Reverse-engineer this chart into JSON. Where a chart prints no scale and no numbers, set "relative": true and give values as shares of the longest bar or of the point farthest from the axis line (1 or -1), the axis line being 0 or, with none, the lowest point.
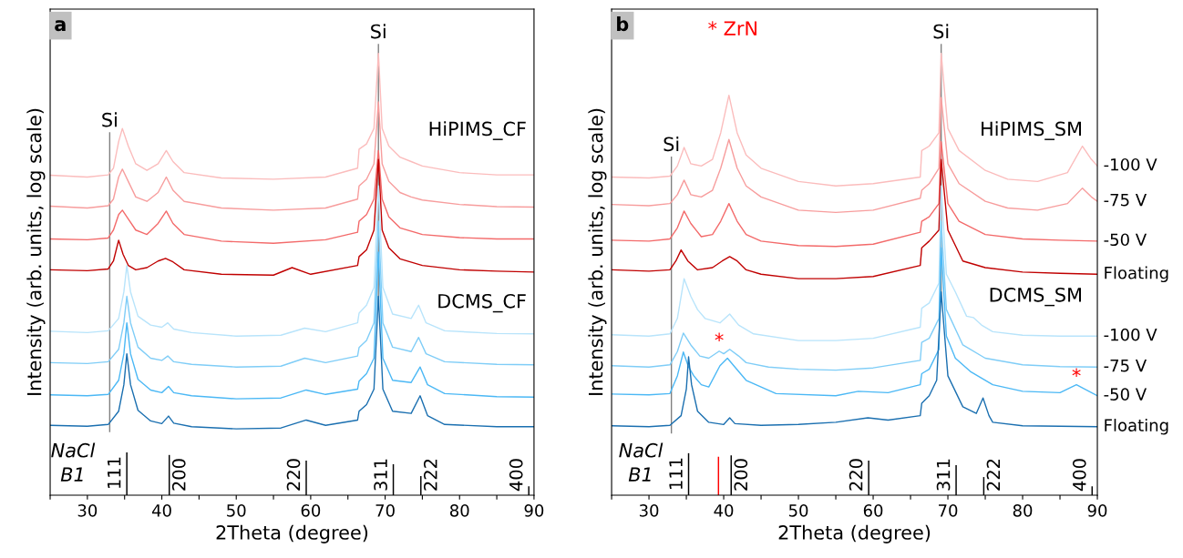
{
  "chart_data": [
    {
      "type": "line",
      "title": "a",
      "xlabel": "2Theta (degree)",
      "ylabel": "Intensity (arb. units, log scale)",
      "relative": true,
      "xlim": [
        25,
        90
      ],
      "xticks": [
        {
          "value": 25,
          "label": null
        },
        30,
        {
          "value": 35,
          "label": null
        },
        40,
        {
          "value": 45,
          "label": null
        },
        50,
        {
          "value": 55,
          "label": null
        },
        60,
        {
          "value": 65,
          "label": null
        },
        70,
        {
          "value": 75,
          "label": null
        },
        80,
        {
          "value": 85,
          "label": null
        },
        90
      ],
      "series": [
        {
          "color": "#fbbcbc",
          "x": [
            25,
            30,
            32.8,
            33.5,
            34.2,
            34.7,
            35.5,
            36.5,
            38,
            39.5,
            40.6,
            41.5,
            43,
            48,
            55,
            62,
            66.3,
            66.5,
            67.5,
            68.5,
            69.1,
            69.6,
            70.5,
            72,
            73.5,
            75,
            80,
            85,
            90
          ],
          "values": [
            0.724,
            0.72,
            0.725,
            0.74,
            0.8,
            0.83,
            0.79,
            0.75,
            0.735,
            0.75,
            0.78,
            0.755,
            0.73,
            0.718,
            0.715,
            0.72,
            0.74,
            0.783,
            0.795,
            0.83,
            1.0,
            0.83,
            0.79,
            0.765,
            0.755,
            0.745,
            0.73,
            0.725,
            0.725
          ]
        },
        {
          "color": "#f79d9d",
          "x": [
            25,
            30,
            32.8,
            33.5,
            34.2,
            34.7,
            35.5,
            36.5,
            38,
            39.5,
            40.6,
            41.5,
            43,
            48,
            55,
            62,
            66.3,
            66.5,
            67.5,
            68.5,
            69.1,
            69.6,
            70.5,
            72,
            73.5,
            75,
            80,
            85,
            90
          ],
          "values": [
            0.654,
            0.65,
            0.655,
            0.67,
            0.72,
            0.738,
            0.71,
            0.675,
            0.665,
            0.685,
            0.72,
            0.69,
            0.665,
            0.65,
            0.645,
            0.65,
            0.67,
            0.7,
            0.715,
            0.75,
            0.89,
            0.75,
            0.71,
            0.685,
            0.675,
            0.668,
            0.658,
            0.653,
            0.652
          ]
        },
        {
          "color": "#f36a6a",
          "x": [
            25,
            30,
            32.8,
            33.5,
            34.2,
            34.7,
            35.5,
            36.5,
            38,
            39.5,
            40.6,
            41.5,
            43,
            48,
            55,
            62,
            66.3,
            66.5,
            67.5,
            68.5,
            69.1,
            69.6,
            70.5,
            72,
            75,
            80,
            85,
            90
          ],
          "values": [
            0.58,
            0.578,
            0.582,
            0.6,
            0.635,
            0.645,
            0.625,
            0.6,
            0.59,
            0.615,
            0.643,
            0.615,
            0.59,
            0.575,
            0.57,
            0.578,
            0.595,
            0.62,
            0.635,
            0.67,
            0.78,
            0.67,
            0.63,
            0.605,
            0.59,
            0.583,
            0.58,
            0.58
          ]
        },
        {
          "color": "#c00000",
          "x": [
            25,
            30,
            32.8,
            33.5,
            34.2,
            34.8,
            35.5,
            36.5,
            38,
            39.5,
            40.5,
            41.5,
            43,
            48,
            55,
            57.5,
            60,
            66.3,
            66.5,
            67.5,
            68.5,
            69.1,
            69.6,
            70.5,
            72,
            75,
            80,
            85,
            90
          ],
          "values": [
            0.51,
            0.508,
            0.512,
            0.53,
            0.577,
            0.545,
            0.52,
            0.51,
            0.515,
            0.53,
            0.536,
            0.528,
            0.51,
            0.5,
            0.498,
            0.515,
            0.5,
            0.52,
            0.54,
            0.555,
            0.6,
            0.76,
            0.6,
            0.56,
            0.535,
            0.52,
            0.51,
            0.507,
            0.505
          ]
        },
        {
          "color": "#b8e4fb",
          "x": [
            25,
            30,
            32.8,
            34.2,
            34.9,
            35.3,
            35.8,
            36.8,
            38.5,
            40.0,
            40.8,
            41.6,
            44,
            50,
            56,
            59.2,
            62,
            66.3,
            66.5,
            67.5,
            68.5,
            69.1,
            69.7,
            71,
            73.5,
            74.5,
            75.5,
            78,
            85,
            90
          ],
          "values": [
            0.371,
            0.368,
            0.372,
            0.4,
            0.46,
            0.52,
            0.46,
            0.405,
            0.385,
            0.38,
            0.39,
            0.376,
            0.368,
            0.36,
            0.362,
            0.378,
            0.37,
            0.39,
            0.412,
            0.43,
            0.47,
            0.7,
            0.47,
            0.41,
            0.4,
            0.43,
            0.39,
            0.372,
            0.366,
            0.365
          ]
        },
        {
          "color": "#7fcdf7",
          "x": [
            25,
            30,
            32.8,
            34.2,
            34.9,
            35.3,
            35.8,
            36.8,
            38.5,
            40.0,
            40.8,
            41.6,
            44,
            50,
            56,
            59.2,
            62,
            66.3,
            66.5,
            67.5,
            68.5,
            69.1,
            69.7,
            71,
            73.5,
            74.5,
            75.5,
            78,
            85,
            90
          ],
          "values": [
            0.3,
            0.298,
            0.302,
            0.33,
            0.39,
            0.45,
            0.39,
            0.335,
            0.31,
            0.305,
            0.315,
            0.302,
            0.296,
            0.29,
            0.292,
            0.31,
            0.3,
            0.315,
            0.334,
            0.35,
            0.39,
            0.62,
            0.39,
            0.335,
            0.325,
            0.357,
            0.32,
            0.302,
            0.296,
            0.295
          ]
        },
        {
          "color": "#4bb8f5",
          "x": [
            25,
            30,
            32.8,
            34.2,
            34.9,
            35.3,
            35.8,
            36.8,
            38.5,
            40.0,
            40.9,
            41.6,
            44,
            50,
            56,
            59.4,
            62,
            66.3,
            66.5,
            67.5,
            68.5,
            69.1,
            69.7,
            71,
            73.5,
            74.7,
            75.7,
            78,
            85,
            90
          ],
          "values": [
            0.227,
            0.225,
            0.228,
            0.26,
            0.32,
            0.39,
            0.32,
            0.262,
            0.238,
            0.232,
            0.246,
            0.232,
            0.225,
            0.218,
            0.22,
            0.238,
            0.228,
            0.24,
            0.258,
            0.275,
            0.31,
            0.55,
            0.31,
            0.26,
            0.255,
            0.29,
            0.25,
            0.23,
            0.223,
            0.222
          ]
        },
        {
          "color": "#1a6fb0",
          "x": [
            25,
            30,
            32.8,
            34.2,
            34.9,
            35.3,
            35.8,
            36.8,
            38.5,
            40.0,
            40.9,
            41.6,
            44,
            50,
            56,
            59.4,
            62,
            66.3,
            66.5,
            67.5,
            68.5,
            69.1,
            69.7,
            71,
            73.5,
            74.7,
            75.7,
            78,
            85,
            90
          ],
          "values": [
            0.158,
            0.156,
            0.16,
            0.19,
            0.25,
            0.32,
            0.25,
            0.192,
            0.168,
            0.162,
            0.179,
            0.163,
            0.155,
            0.15,
            0.152,
            0.17,
            0.158,
            0.17,
            0.19,
            0.205,
            0.24,
            0.45,
            0.24,
            0.19,
            0.185,
            0.225,
            0.18,
            0.16,
            0.155,
            0.155
          ]
        },
        {
          "type": "bar",
          "x": [
            35.3,
            41.0,
            59.4,
            71.1,
            74.8,
            89.3
          ],
          "values": [
            0.097,
            0.091,
            0.078,
            0.07,
            0.043,
            0.02
          ],
          "colors": [
            "#000000",
            "#000000",
            "#000000",
            "#000000",
            "#000000",
            "#000000"
          ]
        }
      ],
      "ref_lines": [
        {
          "axis": "x",
          "value": 33.0,
          "label": "Si",
          "color": "#808080"
        },
        {
          "axis": "x",
          "value": 69.1,
          "label": "Si",
          "color": "#808080"
        }
      ],
      "annotations": [
        "HiPIMS_CF",
        "DCMS_CF",
        "NaCl\nB1",
        {
          "text": "111",
          "x": 35.3,
          "y": 0.097
        },
        {
          "text": "200",
          "x": 41.0,
          "y": 0.091
        },
        {
          "text": "220",
          "x": 59.4,
          "y": 0.078
        },
        {
          "text": "311",
          "x": 71.1,
          "y": 0.07
        },
        {
          "text": "222",
          "x": 74.8,
          "y": 0.043
        },
        {
          "text": "400",
          "x": 89.3,
          "y": 0.02
        }
      ]
    },
    {
      "type": "line",
      "title": "b",
      "xlabel": "2Theta (degree)",
      "ylabel": "Intensity (arb. units, log scale)",
      "relative": true,
      "xlim": [
        25,
        90
      ],
      "xticks": [
        {
          "value": 25,
          "label": null
        },
        30,
        {
          "value": 35,
          "label": null
        },
        40,
        {
          "value": 45,
          "label": null
        },
        50,
        {
          "value": 55,
          "label": null
        },
        60,
        {
          "value": 65,
          "label": null
        },
        70,
        {
          "value": 75,
          "label": null
        },
        80,
        {
          "value": 85,
          "label": null
        },
        90
      ],
      "series": [
        {
          "name": "-100 V",
          "color": "#fbbcbc",
          "x": [
            25,
            30,
            32.8,
            33.8,
            34.7,
            35.6,
            37,
            38.5,
            39.6,
            40.7,
            41.8,
            43,
            45,
            50,
            55,
            60,
            66.3,
            66.5,
            67.5,
            68.8,
            69.1,
            70,
            71.5,
            75,
            78,
            82,
            86,
            88,
            89.2,
            90
          ],
          "values": [
            0.72,
            0.718,
            0.722,
            0.745,
            0.787,
            0.75,
            0.745,
            0.76,
            0.82,
            0.905,
            0.82,
            0.77,
            0.74,
            0.71,
            0.7,
            0.705,
            0.72,
            0.78,
            0.79,
            0.82,
            1.0,
            0.83,
            0.78,
            0.735,
            0.715,
            0.71,
            0.73,
            0.79,
            0.76,
            0.745
          ]
        },
        {
          "name": "-75 V",
          "color": "#f79d9d",
          "x": [
            25,
            30,
            32.8,
            33.8,
            34.7,
            35.6,
            37,
            38.5,
            39.6,
            40.7,
            41.8,
            43,
            45,
            50,
            55,
            60,
            66.3,
            66.5,
            67.5,
            68.8,
            69.1,
            70,
            71.5,
            75,
            78,
            82,
            86,
            88,
            89.2,
            90
          ],
          "values": [
            0.658,
            0.655,
            0.66,
            0.68,
            0.713,
            0.68,
            0.675,
            0.69,
            0.74,
            0.805,
            0.74,
            0.7,
            0.675,
            0.645,
            0.64,
            0.645,
            0.672,
            0.69,
            0.705,
            0.74,
            0.9,
            0.75,
            0.705,
            0.665,
            0.65,
            0.645,
            0.66,
            0.695,
            0.675,
            0.665
          ]
        },
        {
          "name": "-50 V",
          "color": "#f36a6a",
          "x": [
            25,
            30,
            32.8,
            33.8,
            34.7,
            35.6,
            37,
            38.5,
            39.6,
            40.7,
            41.8,
            43,
            45,
            50,
            55,
            60,
            66.3,
            66.5,
            67.5,
            68.8,
            69.1,
            70,
            71.5,
            75,
            80,
            85,
            90
          ],
          "values": [
            0.577,
            0.575,
            0.58,
            0.605,
            0.643,
            0.615,
            0.585,
            0.59,
            0.62,
            0.66,
            0.62,
            0.59,
            0.575,
            0.565,
            0.563,
            0.568,
            0.595,
            0.62,
            0.63,
            0.66,
            0.8,
            0.66,
            0.62,
            0.59,
            0.58,
            0.577,
            0.575
          ]
        },
        {
          "name": "Floating",
          "color": "#c00000",
          "x": [
            25,
            30,
            32.8,
            33.6,
            34.3,
            35.2,
            36.5,
            38.5,
            39.8,
            40.8,
            41.8,
            43,
            45,
            50,
            55,
            60,
            66.3,
            66.5,
            67.5,
            68.8,
            69.1,
            70,
            72,
            75,
            80,
            85,
            90
          ],
          "values": [
            0.51,
            0.507,
            0.51,
            0.53,
            0.555,
            0.53,
            0.51,
            0.515,
            0.53,
            0.54,
            0.53,
            0.51,
            0.5,
            0.49,
            0.49,
            0.495,
            0.52,
            0.56,
            0.575,
            0.6,
            0.76,
            0.6,
            0.53,
            0.515,
            0.505,
            0.502,
            0.5
          ]
        },
        {
          "name": "-100 V",
          "color": "#b8e4fb",
          "x": [
            25,
            30,
            32.8,
            33.8,
            34.7,
            35.6,
            36.5,
            37.5,
            39.5,
            40.8,
            42,
            44,
            50,
            55,
            60,
            66.3,
            66.5,
            67.5,
            68.8,
            69.1,
            69.8,
            71,
            72.5,
            73.4,
            74.5,
            76,
            80,
            85,
            90
          ],
          "values": [
            0.363,
            0.36,
            0.365,
            0.4,
            0.49,
            0.45,
            0.42,
            0.4,
            0.39,
            0.41,
            0.385,
            0.365,
            0.35,
            0.35,
            0.355,
            0.38,
            0.423,
            0.435,
            0.48,
            0.7,
            0.5,
            0.46,
            0.405,
            0.402,
            0.385,
            0.37,
            0.362,
            0.36,
            0.36
          ]
        },
        {
          "name": "-75 V",
          "color": "#7fcdf7",
          "x": [
            25,
            30,
            32.8,
            33.8,
            34.6,
            35.6,
            36.8,
            38,
            39.4,
            40.0,
            40.8,
            42,
            43,
            46,
            50,
            55,
            60,
            66.3,
            66.5,
            67.5,
            68.8,
            69.1,
            69.8,
            72,
            75,
            80,
            85,
            90
          ],
          "values": [
            0.293,
            0.29,
            0.295,
            0.325,
            0.367,
            0.34,
            0.315,
            0.31,
            0.326,
            0.32,
            0.33,
            0.315,
            0.3,
            0.29,
            0.285,
            0.283,
            0.288,
            0.305,
            0.346,
            0.355,
            0.4,
            0.62,
            0.42,
            0.34,
            0.31,
            0.295,
            0.291,
            0.29
          ]
        },
        {
          "name": "-50 V",
          "color": "#4bb8f5",
          "x": [
            25,
            30,
            32.8,
            33.8,
            34.6,
            35.3,
            36,
            37,
            38,
            39.5,
            40.5,
            41.5,
            43,
            47,
            55,
            58,
            62,
            66.3,
            66.5,
            67.5,
            68.8,
            69.1,
            69.8,
            71,
            73,
            76,
            80,
            85,
            87.2,
            90
          ],
          "values": [
            0.229,
            0.227,
            0.23,
            0.27,
            0.324,
            0.29,
            0.27,
            0.25,
            0.245,
            0.293,
            0.31,
            0.29,
            0.26,
            0.23,
            0.225,
            0.235,
            0.232,
            0.25,
            0.275,
            0.285,
            0.33,
            0.56,
            0.36,
            0.31,
            0.28,
            0.25,
            0.235,
            0.232,
            0.25,
            0.225
          ]
        },
        {
          "name": "Floating",
          "color": "#1a6fb0",
          "x": [
            25,
            30,
            32.8,
            34.3,
            35.0,
            35.3,
            35.7,
            36.5,
            38,
            40,
            40.8,
            41.5,
            45,
            50,
            55,
            59.3,
            62,
            66.3,
            66.5,
            67.5,
            68.5,
            69.1,
            70,
            72,
            73.8,
            74.7,
            75.5,
            76,
            80,
            85,
            90
          ],
          "values": [
            0.157,
            0.155,
            0.158,
            0.18,
            0.24,
            0.313,
            0.25,
            0.19,
            0.165,
            0.16,
            0.175,
            0.162,
            0.158,
            0.16,
            0.165,
            0.175,
            0.17,
            0.18,
            0.208,
            0.225,
            0.26,
            0.46,
            0.27,
            0.2,
            0.185,
            0.22,
            0.18,
            0.165,
            0.157,
            0.156,
            0.155
          ]
        },
        {
          "type": "bar",
          "x": [
            35.3,
            39.3,
            41.0,
            59.4,
            71.1,
            74.8,
            89.3
          ],
          "values": [
            0.095,
            0.087,
            0.09,
            0.078,
            0.068,
            0.041,
            0.02
          ],
          "colors": [
            "#000000",
            "#ff0000",
            "#000000",
            "#000000",
            "#000000",
            "#000000",
            "#000000"
          ]
        }
      ],
      "ref_lines": [
        {
          "axis": "x",
          "value": 33.0,
          "label": "Si",
          "color": "#808080"
        },
        {
          "axis": "x",
          "value": 69.1,
          "label": "Si",
          "color": "#808080"
        }
      ],
      "annotations": [
        "* ZrN",
        "HiPIMS_SM",
        "DCMS_SM",
        "NaCl\nB1",
        "*",
        "*",
        {
          "text": "111",
          "x": 35.3,
          "y": 0.095
        },
        {
          "text": "200",
          "x": 41.0,
          "y": 0.09
        },
        {
          "text": "220",
          "x": 59.4,
          "y": 0.078
        },
        {
          "text": "311",
          "x": 71.1,
          "y": 0.068
        },
        {
          "text": "222",
          "x": 74.8,
          "y": 0.041
        },
        {
          "text": "400",
          "x": 89.3,
          "y": 0.02
        }
      ]
    }
  ]
}
